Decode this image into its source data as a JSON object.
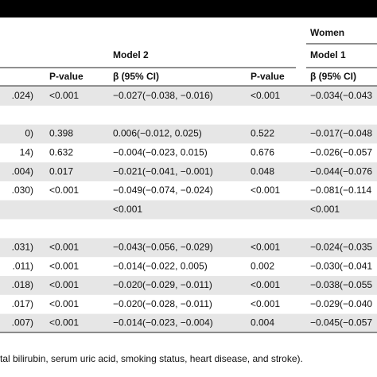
{
  "header": {
    "group": "Women",
    "models": [
      "Model 2",
      "Model 1"
    ],
    "columns": [
      "P-value",
      "β (95% CI)",
      "P-value",
      "β (95% CI)"
    ]
  },
  "table": {
    "rows": [
      [
        ".024)",
        "<0.001",
        "−0.027(−0.038, −0.016)",
        "<0.001",
        "−0.034(−0.043"
      ],
      [
        null,
        null,
        null,
        null,
        null
      ],
      [
        "0)",
        "0.398",
        "0.006(−0.012, 0.025)",
        "0.522",
        "−0.017(−0.048"
      ],
      [
        "14)",
        "0.632",
        "−0.004(−0.023, 0.015)",
        "0.676",
        "−0.026(−0.057"
      ],
      [
        ".004)",
        "0.017",
        "−0.021(−0.041, −0.001)",
        "0.048",
        "−0.044(−0.076"
      ],
      [
        ".030)",
        "<0.001",
        "−0.049(−0.074, −0.024)",
        "<0.001",
        "−0.081(−0.114"
      ],
      [
        null,
        null,
        "<0.001",
        null,
        "<0.001"
      ],
      [
        null,
        null,
        null,
        null,
        null
      ],
      [
        ".031)",
        "<0.001",
        "−0.043(−0.056, −0.029)",
        "<0.001",
        "−0.024(−0.035"
      ],
      [
        ".011)",
        "<0.001",
        "−0.014(−0.022, 0.005)",
        "0.002",
        "−0.030(−0.041"
      ],
      [
        ".018)",
        "<0.001",
        "−0.020(−0.029, −0.011)",
        "<0.001",
        "−0.038(−0.055"
      ],
      [
        ".017)",
        "<0.001",
        "−0.020(−0.028, −0.011)",
        "<0.001",
        "−0.029(−0.040"
      ],
      [
        ".007)",
        "<0.001",
        "−0.014(−0.023, −0.004)",
        "0.004",
        "−0.045(−0.057"
      ]
    ]
  },
  "footnote": "tal bilirubin, serum uric acid, smoking status, heart disease, and stroke)."
}
